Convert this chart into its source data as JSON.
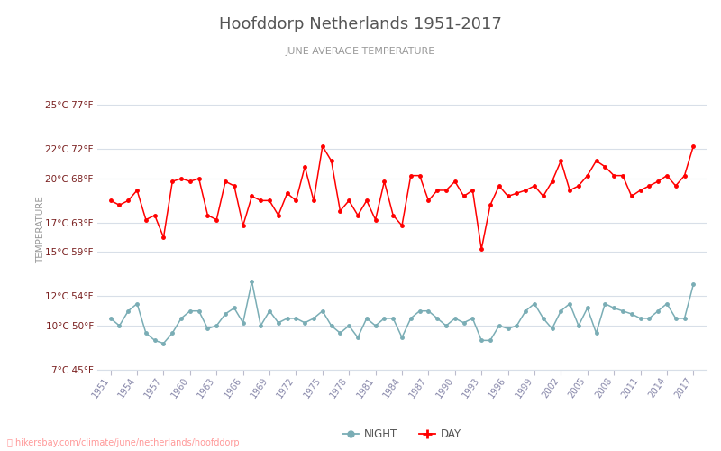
{
  "title": "Hoofddorp Netherlands 1951-2017",
  "subtitle": "JUNE AVERAGE TEMPERATURE",
  "ylabel": "TEMPERATURE",
  "footer": "hikersbay.com/climate/june/netherlands/hoofddorp",
  "years": [
    1951,
    1952,
    1953,
    1954,
    1955,
    1956,
    1957,
    1958,
    1959,
    1960,
    1961,
    1962,
    1963,
    1964,
    1965,
    1966,
    1967,
    1968,
    1969,
    1970,
    1971,
    1972,
    1973,
    1974,
    1975,
    1976,
    1977,
    1978,
    1979,
    1980,
    1981,
    1982,
    1983,
    1984,
    1985,
    1986,
    1987,
    1988,
    1989,
    1990,
    1991,
    1992,
    1993,
    1994,
    1995,
    1996,
    1997,
    1998,
    1999,
    2000,
    2001,
    2002,
    2003,
    2004,
    2005,
    2006,
    2007,
    2008,
    2009,
    2010,
    2011,
    2012,
    2013,
    2014,
    2015,
    2016,
    2017
  ],
  "day": [
    18.5,
    18.2,
    18.5,
    19.2,
    17.2,
    17.5,
    16.0,
    19.8,
    20.0,
    19.8,
    20.0,
    17.5,
    17.2,
    19.8,
    19.5,
    16.8,
    18.8,
    18.5,
    18.5,
    17.5,
    19.0,
    18.5,
    20.8,
    18.5,
    22.2,
    21.2,
    17.8,
    18.5,
    17.5,
    18.5,
    17.2,
    19.8,
    17.5,
    16.8,
    20.2,
    20.2,
    18.5,
    19.2,
    19.2,
    19.8,
    18.8,
    19.2,
    15.2,
    18.2,
    19.5,
    18.8,
    19.0,
    19.2,
    19.5,
    18.8,
    19.8,
    21.2,
    19.2,
    19.5,
    20.2,
    21.2,
    20.8,
    20.2,
    20.2,
    18.8,
    19.2,
    19.5,
    19.8,
    20.2,
    19.5,
    20.2,
    22.2
  ],
  "night": [
    10.5,
    10.0,
    11.0,
    11.5,
    9.5,
    9.0,
    8.8,
    9.5,
    10.5,
    11.0,
    11.0,
    9.8,
    10.0,
    10.8,
    11.2,
    10.2,
    13.0,
    10.0,
    11.0,
    10.2,
    10.5,
    10.5,
    10.2,
    10.5,
    11.0,
    10.0,
    9.5,
    10.0,
    9.2,
    10.5,
    10.0,
    10.5,
    10.5,
    9.2,
    10.5,
    11.0,
    11.0,
    10.5,
    10.0,
    10.5,
    10.2,
    10.5,
    9.0,
    9.0,
    10.0,
    9.8,
    10.0,
    11.0,
    11.5,
    10.5,
    9.8,
    11.0,
    11.5,
    10.0,
    11.2,
    9.5,
    11.5,
    11.2,
    11.0,
    10.8,
    10.5,
    10.5,
    11.0,
    11.5,
    10.5,
    10.5,
    12.8
  ],
  "day_color": "#ff0000",
  "night_color": "#7aadb5",
  "background_color": "#ffffff",
  "grid_color": "#d8dfe8",
  "title_color": "#555555",
  "subtitle_color": "#999999",
  "ylabel_color": "#999999",
  "tick_label_color": "#7a2020",
  "xtick_color": "#8888aa",
  "ylim": [
    7,
    26
  ],
  "yticks_c": [
    7,
    10,
    12,
    15,
    17,
    20,
    22,
    25
  ],
  "yticks_f": [
    45,
    50,
    54,
    59,
    63,
    68,
    72,
    77
  ],
  "xtick_years": [
    1951,
    1954,
    1957,
    1960,
    1963,
    1966,
    1969,
    1972,
    1975,
    1978,
    1981,
    1984,
    1987,
    1990,
    1993,
    1996,
    1999,
    2002,
    2005,
    2008,
    2011,
    2014,
    2017
  ],
  "xlim": [
    1949.5,
    2018.5
  ]
}
